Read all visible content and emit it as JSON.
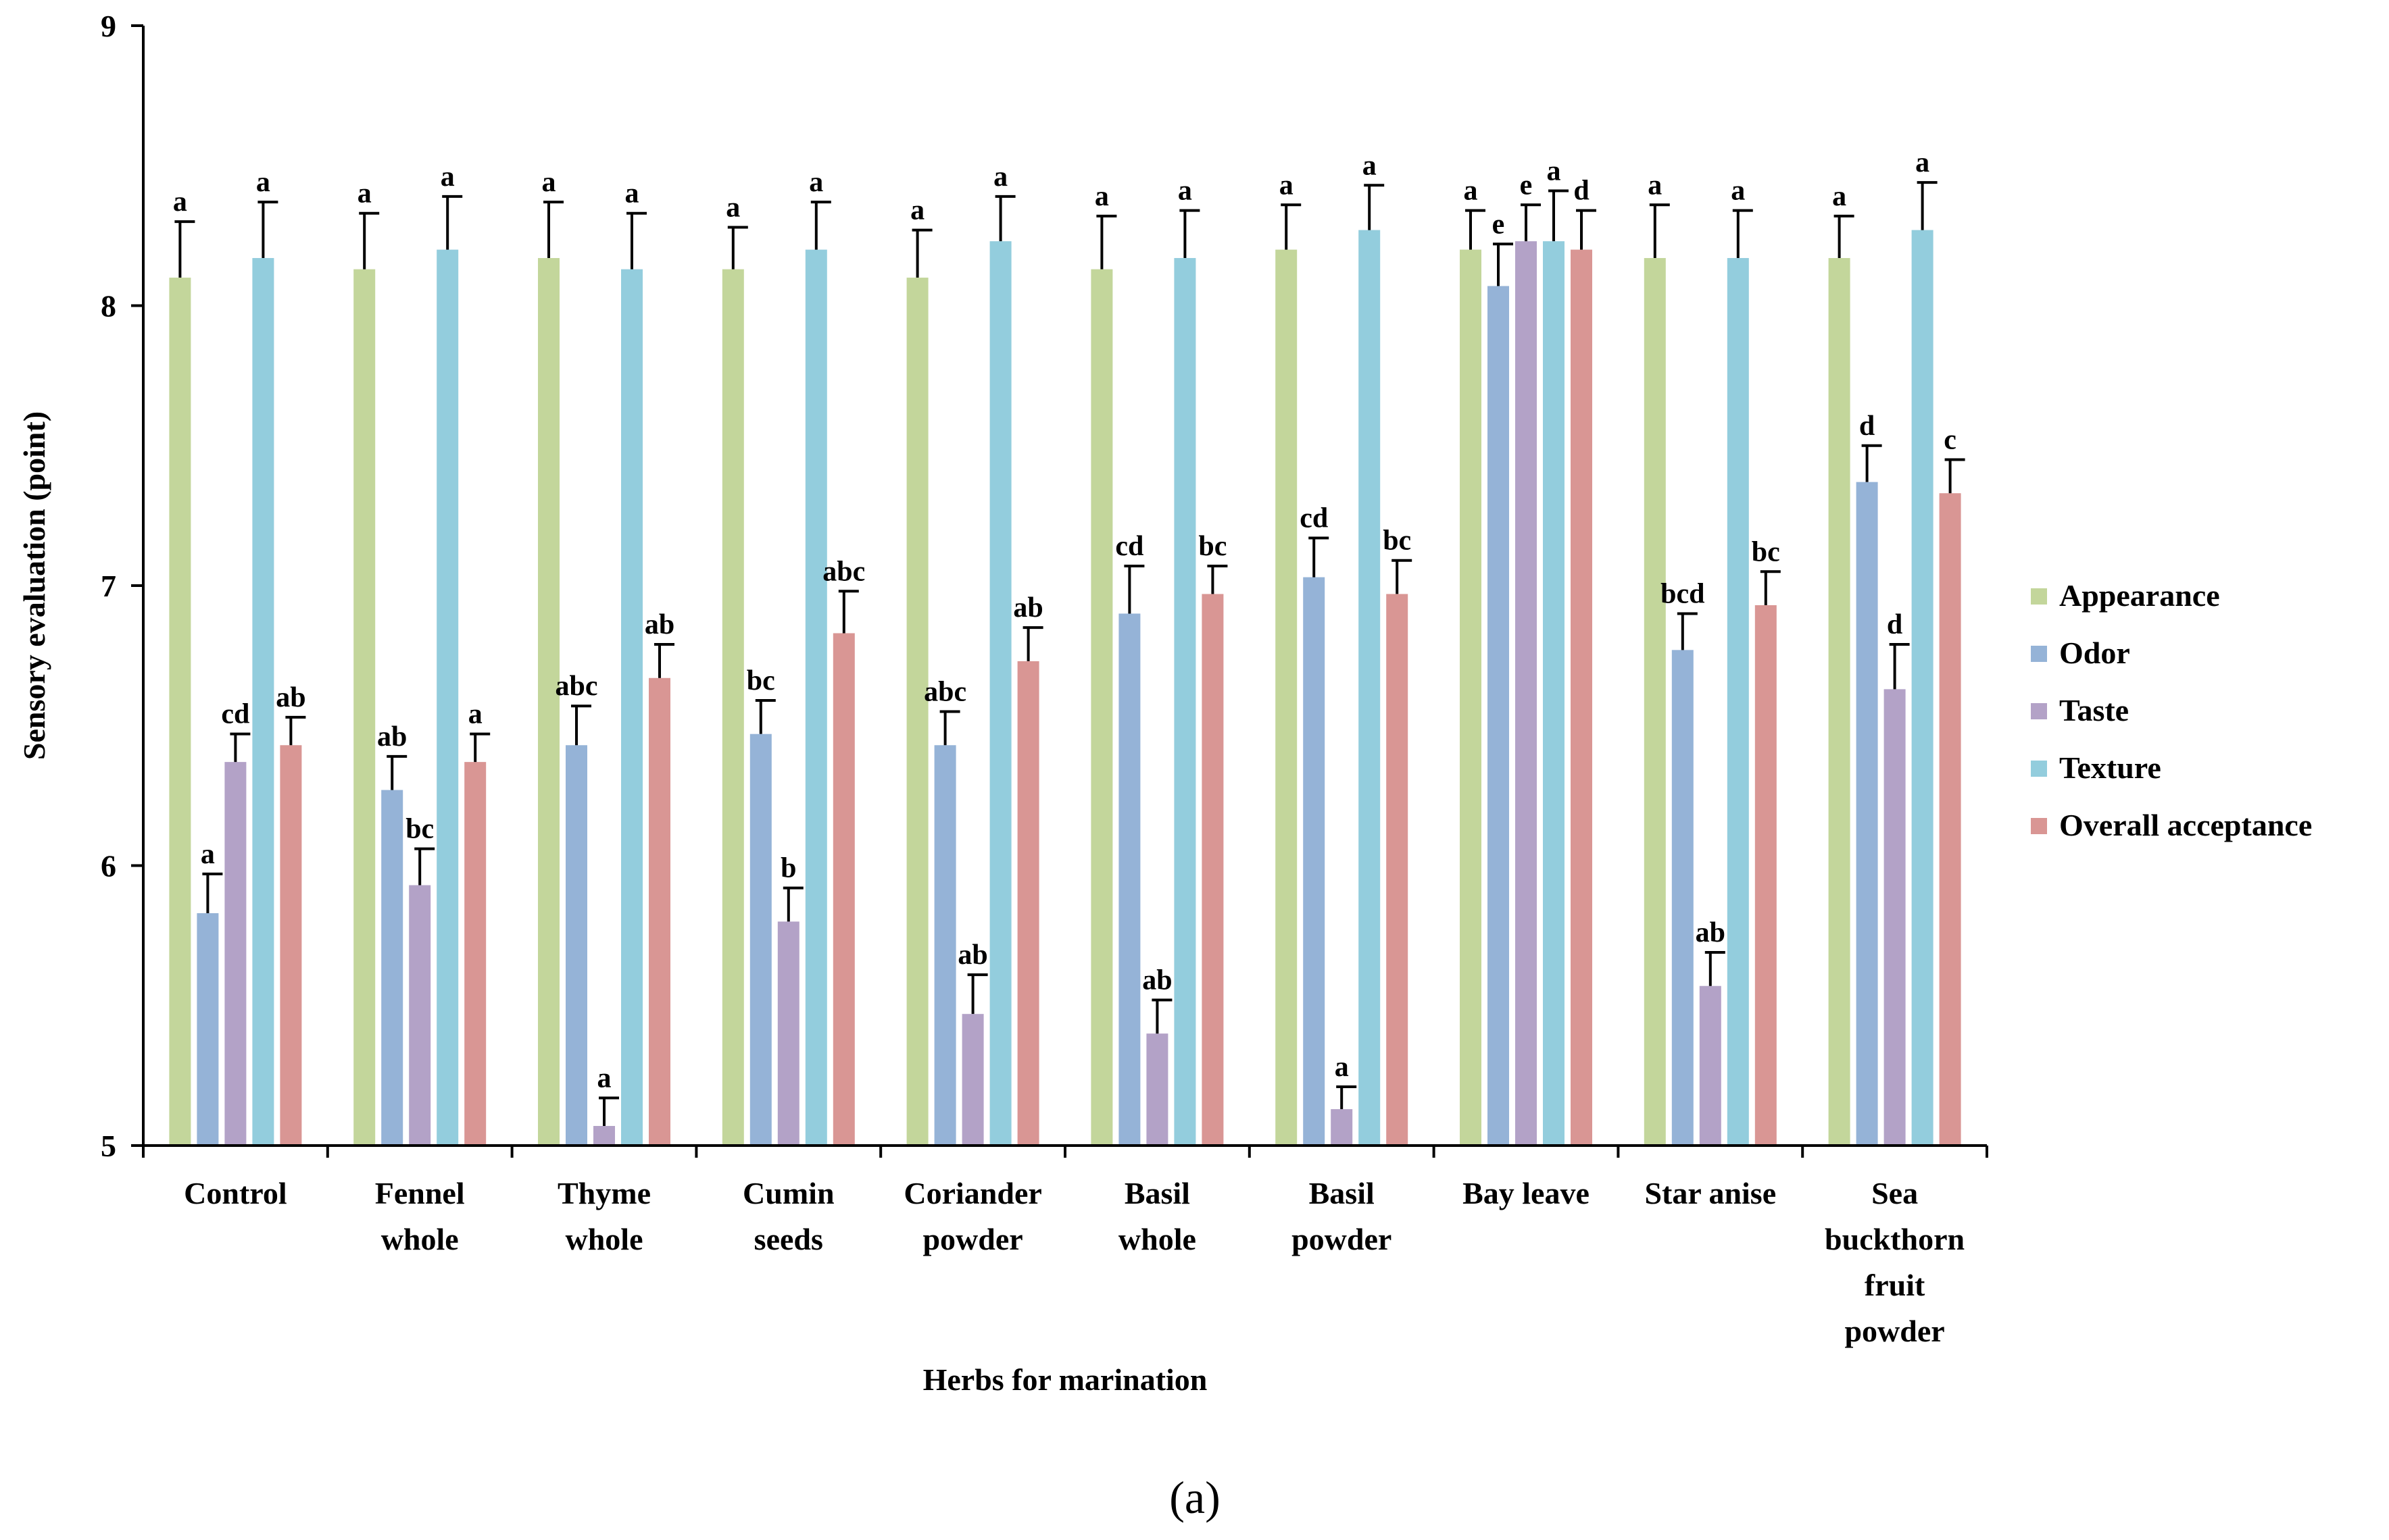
{
  "chart_data": {
    "type": "bar",
    "xlabel": "Herbs for marination",
    "ylabel": "Sensory evaluation (point)",
    "ylim": [
      5,
      9
    ],
    "yticks": [
      "5",
      "6",
      "7",
      "8",
      "9"
    ],
    "legend_position": "right",
    "panel_label": "(a)",
    "categories": [
      [
        "Control"
      ],
      [
        "Fennel",
        "whole"
      ],
      [
        "Thyme",
        "whole"
      ],
      [
        "Cumin",
        "seeds"
      ],
      [
        "Coriander",
        "powder"
      ],
      [
        "Basil",
        "whole"
      ],
      [
        "Basil",
        "powder"
      ],
      [
        "Bay leave"
      ],
      [
        "Star anise"
      ],
      [
        "Sea",
        "buckthorn",
        "fruit",
        "powder"
      ]
    ],
    "series": [
      {
        "name": "Appearance",
        "color": "#c3d69b",
        "values": [
          8.1,
          8.13,
          8.17,
          8.13,
          8.1,
          8.13,
          8.2,
          8.2,
          8.17,
          8.17
        ],
        "errors": [
          0.2,
          0.2,
          0.2,
          0.15,
          0.17,
          0.19,
          0.16,
          0.14,
          0.19,
          0.15
        ],
        "labels": [
          "a",
          "a",
          "a",
          "a",
          "a",
          "a",
          "a",
          "a",
          "a",
          "a"
        ]
      },
      {
        "name": "Odor",
        "color": "#95b3d7",
        "values": [
          5.83,
          6.27,
          6.43,
          6.47,
          6.43,
          6.9,
          7.03,
          8.07,
          6.77,
          7.37
        ],
        "errors": [
          0.14,
          0.12,
          0.14,
          0.12,
          0.12,
          0.17,
          0.14,
          0.15,
          0.13,
          0.13
        ],
        "labels": [
          "a",
          "ab",
          "abc",
          "bc",
          "abc",
          "cd",
          "cd",
          "e",
          "bcd",
          "d"
        ]
      },
      {
        "name": "Taste",
        "color": "#b3a2c7",
        "values": [
          6.37,
          5.93,
          5.07,
          5.8,
          5.47,
          5.4,
          5.13,
          8.23,
          5.57,
          6.63
        ],
        "errors": [
          0.1,
          0.13,
          0.1,
          0.12,
          0.14,
          0.12,
          0.08,
          0.13,
          0.12,
          0.16
        ],
        "labels": [
          "cd",
          "bc",
          "a",
          "b",
          "ab",
          "ab",
          "a",
          "e",
          "ab",
          "d"
        ]
      },
      {
        "name": "Texture",
        "color": "#93cddd",
        "values": [
          8.17,
          8.2,
          8.13,
          8.2,
          8.23,
          8.17,
          8.27,
          8.23,
          8.17,
          8.27
        ],
        "errors": [
          0.2,
          0.19,
          0.2,
          0.17,
          0.16,
          0.17,
          0.16,
          0.18,
          0.17,
          0.17
        ],
        "labels": [
          "a",
          "a",
          "a",
          "a",
          "a",
          "a",
          "a",
          "a",
          "a",
          "a"
        ]
      },
      {
        "name": "Overall acceptance",
        "color": "#d99694",
        "values": [
          6.43,
          6.37,
          6.67,
          6.83,
          6.73,
          6.97,
          6.97,
          8.2,
          6.93,
          7.33
        ],
        "errors": [
          0.1,
          0.1,
          0.12,
          0.15,
          0.12,
          0.1,
          0.12,
          0.14,
          0.12,
          0.12
        ],
        "labels": [
          "ab",
          "a",
          "ab",
          "abc",
          "ab",
          "bc",
          "bc",
          "d",
          "bc",
          "c"
        ]
      }
    ]
  }
}
